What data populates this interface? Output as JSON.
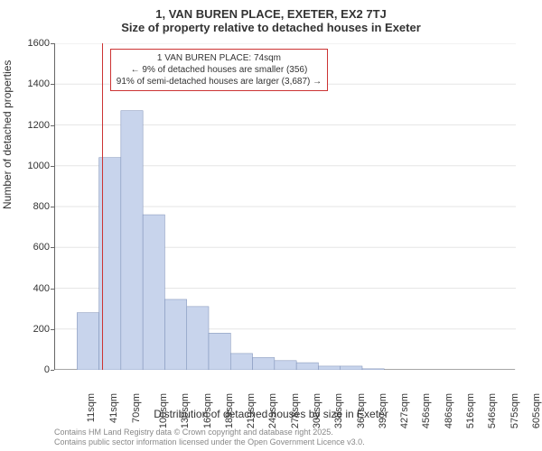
{
  "chart": {
    "type": "histogram",
    "title_line1": "1, VAN BUREN PLACE, EXETER, EX2 7TJ",
    "title_line2": "Size of property relative to detached houses in Exeter",
    "xlabel": "Distribution of detached houses by size in Exeter",
    "ylabel": "Number of detached properties",
    "ylim": [
      0,
      1600
    ],
    "ytick_step": 200,
    "yticks": [
      0,
      200,
      400,
      600,
      800,
      1000,
      1200,
      1400,
      1600
    ],
    "x_categories": [
      "11sqm",
      "41sqm",
      "70sqm",
      "100sqm",
      "130sqm",
      "160sqm",
      "189sqm",
      "219sqm",
      "249sqm",
      "278sqm",
      "308sqm",
      "338sqm",
      "367sqm",
      "397sqm",
      "427sqm",
      "456sqm",
      "486sqm",
      "516sqm",
      "546sqm",
      "575sqm",
      "605sqm"
    ],
    "values": [
      0,
      280,
      1040,
      1270,
      760,
      345,
      310,
      180,
      80,
      60,
      45,
      35,
      18,
      18,
      5,
      0,
      0,
      0,
      0,
      0,
      0
    ],
    "bar_fill": "#c8d4ec",
    "bar_stroke": "#7a8db5",
    "grid_color": "#e6e6e6",
    "axis_color": "#666666",
    "background_color": "#ffffff",
    "title_fontsize": 13,
    "label_fontsize": 12,
    "tick_fontsize": 11,
    "marker": {
      "position_sqm": 74,
      "color": "#cc3333"
    },
    "annotation": {
      "line1": "1 VAN BUREN PLACE: 74sqm",
      "line2": "← 9% of detached houses are smaller (356)",
      "line3": "91% of semi-detached houses are larger (3,687) →",
      "border_color": "#cc3333",
      "background": "#ffffff",
      "fontsize": 10
    },
    "attribution": {
      "line1": "Contains HM Land Registry data © Crown copyright and database right 2025.",
      "line2": "Contains public sector information licensed under the Open Government Licence v3.0.",
      "color": "#888888",
      "fontsize": 9
    }
  }
}
